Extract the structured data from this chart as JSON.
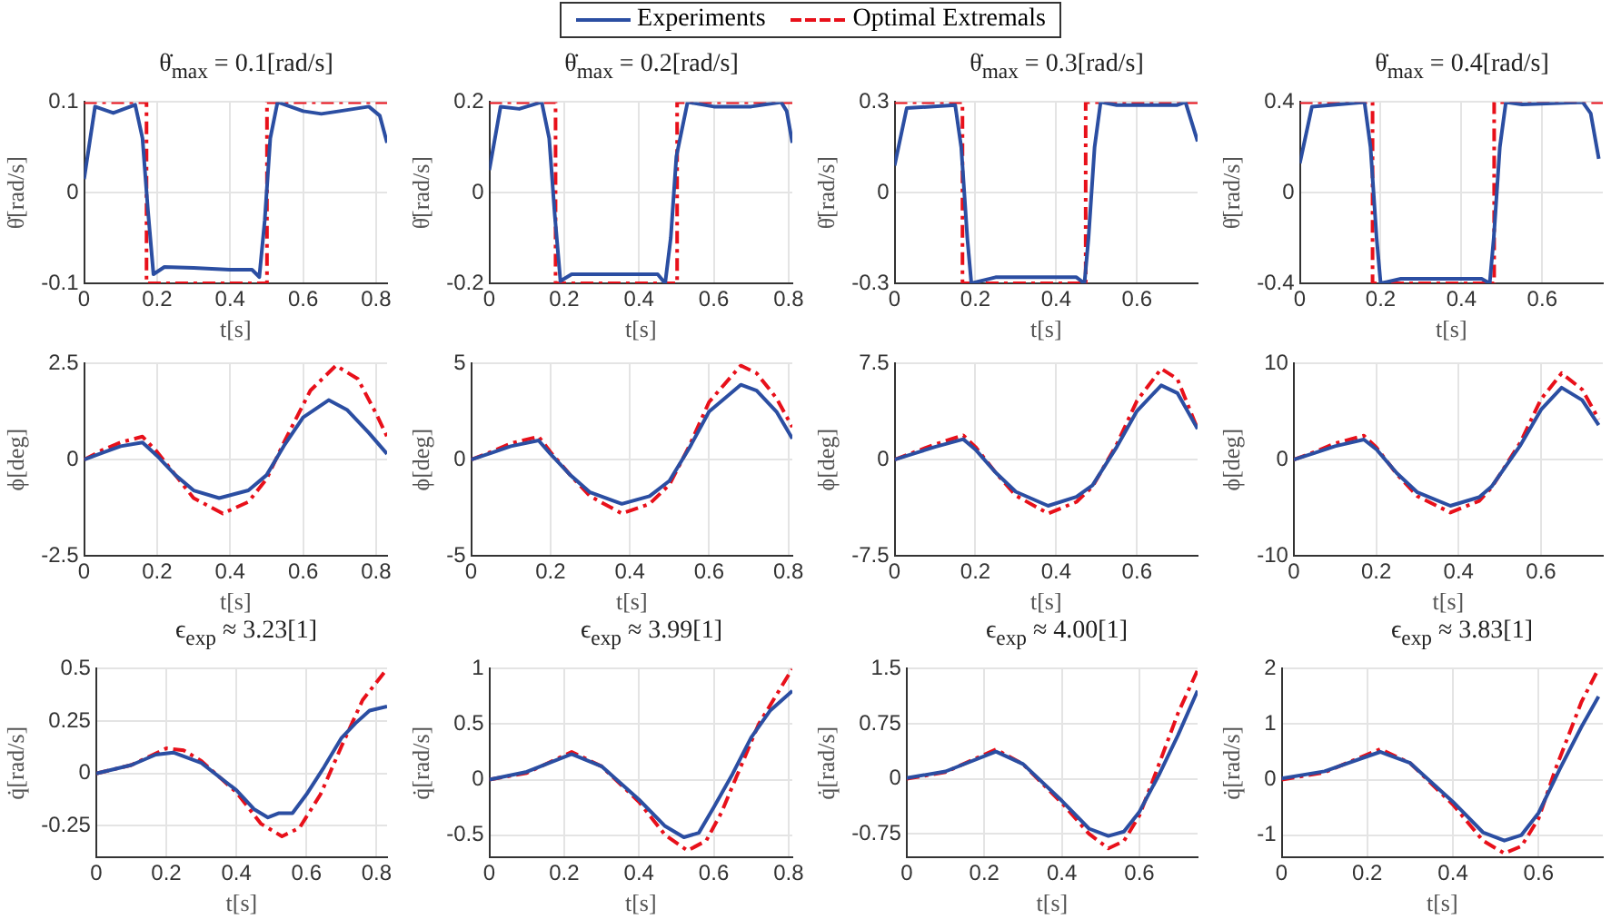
{
  "chart_data": [
    {
      "type": "line",
      "title": "θ̇$_{max}$ = 0.1[rad/s]",
      "xlabel": "t[s]",
      "ylabel": "θ̇[rad/s]",
      "xlim": [
        0,
        0.83
      ],
      "xticks": [
        0,
        0.2,
        0.4,
        0.6,
        0.8
      ],
      "ylim": [
        -0.1,
        0.1
      ],
      "yticks": [
        -0.1,
        0,
        0.1
      ],
      "grid": true,
      "legend": "top",
      "series": [
        {
          "name": "Experiments",
          "color": "#2b4ea2",
          "line_style": "solid",
          "x": [
            0,
            0.03,
            0.08,
            0.14,
            0.16,
            0.175,
            0.19,
            0.22,
            0.3,
            0.4,
            0.46,
            0.48,
            0.495,
            0.51,
            0.53,
            0.6,
            0.65,
            0.7,
            0.78,
            0.81,
            0.83
          ],
          "values": [
            0.015,
            0.095,
            0.088,
            0.097,
            0.06,
            -0.02,
            -0.09,
            -0.082,
            -0.083,
            -0.085,
            -0.085,
            -0.093,
            -0.03,
            0.06,
            0.1,
            0.09,
            0.087,
            0.09,
            0.095,
            0.085,
            0.055
          ]
        },
        {
          "name": "Optimal Extremals",
          "color": "#e8101a",
          "line_style": "dashed",
          "x": [
            0,
            0.171,
            0.171,
            0.501,
            0.501,
            0.83
          ],
          "values": [
            0.1,
            0.1,
            -0.1,
            -0.1,
            0.1,
            0.1
          ]
        }
      ]
    },
    {
      "type": "line",
      "title": "θ̇$_{max}$ = 0.2[rad/s]",
      "xlabel": "t[s]",
      "ylabel": "θ̇[rad/s]",
      "xlim": [
        0,
        0.81
      ],
      "xticks": [
        0,
        0.2,
        0.4,
        0.6,
        0.8
      ],
      "ylim": [
        -0.2,
        0.2
      ],
      "yticks": [
        -0.2,
        0,
        0.2
      ],
      "grid": true,
      "series": [
        {
          "color": "#2b4ea2",
          "line_style": "solid",
          "x": [
            0,
            0.03,
            0.08,
            0.14,
            0.16,
            0.175,
            0.19,
            0.22,
            0.3,
            0.45,
            0.47,
            0.485,
            0.5,
            0.53,
            0.6,
            0.7,
            0.78,
            0.795,
            0.81
          ],
          "values": [
            0.05,
            0.19,
            0.185,
            0.2,
            0.12,
            -0.05,
            -0.195,
            -0.18,
            -0.18,
            -0.18,
            -0.2,
            -0.1,
            0.08,
            0.2,
            0.19,
            0.19,
            0.2,
            0.18,
            0.11
          ]
        },
        {
          "color": "#e8101a",
          "line_style": "dashed",
          "x": [
            0,
            0.177,
            0.177,
            0.502,
            0.502,
            0.81
          ],
          "values": [
            0.2,
            0.2,
            -0.2,
            -0.2,
            0.2,
            0.2
          ]
        }
      ]
    },
    {
      "type": "line",
      "title": "θ̇$_{max}$ = 0.3[rad/s]",
      "xlabel": "t[s]",
      "ylabel": "θ̇[rad/s]",
      "xlim": [
        0,
        0.75
      ],
      "xticks": [
        0,
        0.2,
        0.4,
        0.6
      ],
      "ylim": [
        -0.3,
        0.3
      ],
      "yticks": [
        -0.3,
        0,
        0.3
      ],
      "grid": true,
      "series": [
        {
          "color": "#2b4ea2",
          "line_style": "solid",
          "x": [
            0,
            0.03,
            0.15,
            0.165,
            0.18,
            0.19,
            0.25,
            0.45,
            0.47,
            0.48,
            0.495,
            0.51,
            0.55,
            0.7,
            0.72,
            0.75
          ],
          "values": [
            0.09,
            0.28,
            0.29,
            0.15,
            -0.15,
            -0.3,
            -0.28,
            -0.28,
            -0.3,
            -0.15,
            0.15,
            0.3,
            0.29,
            0.29,
            0.3,
            0.17
          ]
        },
        {
          "color": "#e8101a",
          "line_style": "dashed",
          "x": [
            0,
            0.168,
            0.168,
            0.473,
            0.473,
            0.75
          ],
          "values": [
            0.3,
            0.3,
            -0.3,
            -0.3,
            0.3,
            0.3
          ]
        }
      ]
    },
    {
      "type": "line",
      "title": "θ̇$_{max}$ = 0.4[rad/s]",
      "xlabel": "t[s]",
      "ylabel": "θ̇[rad/s]",
      "xlim": [
        0,
        0.75
      ],
      "xticks": [
        0,
        0.2,
        0.4,
        0.6
      ],
      "ylim": [
        -0.4,
        0.4
      ],
      "yticks": [
        -0.4,
        0,
        0.4
      ],
      "grid": true,
      "series": [
        {
          "color": "#2b4ea2",
          "line_style": "solid",
          "x": [
            0,
            0.03,
            0.16,
            0.175,
            0.19,
            0.2,
            0.25,
            0.45,
            0.47,
            0.48,
            0.495,
            0.51,
            0.55,
            0.7,
            0.72,
            0.74
          ],
          "values": [
            0.13,
            0.38,
            0.4,
            0.2,
            -0.2,
            -0.4,
            -0.38,
            -0.38,
            -0.4,
            -0.2,
            0.2,
            0.4,
            0.39,
            0.4,
            0.35,
            0.15
          ]
        },
        {
          "color": "#e8101a",
          "line_style": "dashed",
          "x": [
            0,
            0.18,
            0.18,
            0.481,
            0.481,
            0.75
          ],
          "values": [
            0.4,
            0.4,
            -0.4,
            -0.4,
            0.4,
            0.4
          ]
        }
      ]
    },
    {
      "type": "line",
      "xlabel": "t[s]",
      "ylabel": "ϕ[deg]",
      "xlim": [
        0,
        0.83
      ],
      "xticks": [
        0,
        0.2,
        0.4,
        0.6,
        0.8
      ],
      "ylim": [
        -2.5,
        2.5
      ],
      "yticks": [
        -2.5,
        0,
        2.5
      ],
      "grid": true,
      "series": [
        {
          "color": "#2b4ea2",
          "line_style": "solid",
          "x": [
            0,
            0.05,
            0.1,
            0.16,
            0.2,
            0.25,
            0.3,
            0.37,
            0.45,
            0.5,
            0.55,
            0.6,
            0.67,
            0.72,
            0.78,
            0.83
          ],
          "values": [
            0,
            0.18,
            0.35,
            0.45,
            0.1,
            -0.4,
            -0.8,
            -1.0,
            -0.8,
            -0.4,
            0.4,
            1.1,
            1.55,
            1.3,
            0.7,
            0.15
          ]
        },
        {
          "color": "#e8101a",
          "line_style": "dashed",
          "x": [
            0,
            0.05,
            0.1,
            0.16,
            0.2,
            0.25,
            0.3,
            0.38,
            0.45,
            0.5,
            0.55,
            0.62,
            0.69,
            0.75,
            0.8,
            0.83
          ],
          "values": [
            0,
            0.25,
            0.45,
            0.6,
            0.2,
            -0.4,
            -1.0,
            -1.4,
            -1.1,
            -0.5,
            0.5,
            1.8,
            2.45,
            2.1,
            1.2,
            0.6
          ]
        }
      ]
    },
    {
      "type": "line",
      "xlabel": "t[s]",
      "ylabel": "ϕ[deg]",
      "xlim": [
        0,
        0.81
      ],
      "xticks": [
        0,
        0.2,
        0.4,
        0.6,
        0.8
      ],
      "ylim": [
        -5,
        5
      ],
      "yticks": [
        -5,
        0,
        5
      ],
      "grid": true,
      "series": [
        {
          "color": "#2b4ea2",
          "line_style": "solid",
          "x": [
            0,
            0.05,
            0.1,
            0.17,
            0.2,
            0.25,
            0.3,
            0.38,
            0.45,
            0.5,
            0.55,
            0.6,
            0.68,
            0.72,
            0.77,
            0.81
          ],
          "values": [
            0,
            0.35,
            0.7,
            1.0,
            0.3,
            -0.8,
            -1.7,
            -2.3,
            -1.9,
            -1.1,
            0.6,
            2.5,
            3.9,
            3.6,
            2.5,
            1.1
          ]
        },
        {
          "color": "#e8101a",
          "line_style": "dashed",
          "x": [
            0,
            0.05,
            0.1,
            0.17,
            0.2,
            0.25,
            0.3,
            0.38,
            0.45,
            0.5,
            0.55,
            0.6,
            0.68,
            0.72,
            0.77,
            0.81
          ],
          "values": [
            0,
            0.4,
            0.85,
            1.2,
            0.4,
            -0.8,
            -1.9,
            -2.8,
            -2.3,
            -1.3,
            0.7,
            3.0,
            4.9,
            4.5,
            3.2,
            1.7
          ]
        }
      ]
    },
    {
      "type": "line",
      "xlabel": "t[s]",
      "ylabel": "ϕ[deg]",
      "xlim": [
        0,
        0.75
      ],
      "xticks": [
        0,
        0.2,
        0.4,
        0.6
      ],
      "ylim": [
        -7.5,
        7.5
      ],
      "yticks": [
        -7.5,
        0,
        7.5
      ],
      "grid": true,
      "series": [
        {
          "color": "#2b4ea2",
          "line_style": "solid",
          "x": [
            0,
            0.05,
            0.1,
            0.17,
            0.2,
            0.25,
            0.3,
            0.38,
            0.45,
            0.49,
            0.55,
            0.6,
            0.66,
            0.7,
            0.75
          ],
          "values": [
            0,
            0.5,
            1.0,
            1.6,
            0.8,
            -1.0,
            -2.5,
            -3.6,
            -2.9,
            -2.0,
            1.0,
            3.8,
            5.8,
            5.2,
            2.4
          ]
        },
        {
          "color": "#e8101a",
          "line_style": "dashed",
          "x": [
            0,
            0.05,
            0.1,
            0.17,
            0.2,
            0.25,
            0.3,
            0.38,
            0.45,
            0.49,
            0.55,
            0.6,
            0.66,
            0.7,
            0.75
          ],
          "values": [
            0,
            0.6,
            1.2,
            1.9,
            1.0,
            -1.0,
            -2.8,
            -4.2,
            -3.3,
            -2.1,
            1.2,
            4.6,
            7.1,
            6.3,
            2.4
          ]
        }
      ]
    },
    {
      "type": "line",
      "xlabel": "t[s]",
      "ylabel": "ϕ[deg]",
      "xlim": [
        0,
        0.75
      ],
      "xticks": [
        0,
        0.2,
        0.4,
        0.6
      ],
      "ylim": [
        -10,
        10
      ],
      "yticks": [
        -10,
        0,
        10
      ],
      "grid": true,
      "series": [
        {
          "color": "#2b4ea2",
          "line_style": "solid",
          "x": [
            0,
            0.05,
            0.1,
            0.17,
            0.2,
            0.25,
            0.3,
            0.38,
            0.45,
            0.48,
            0.55,
            0.6,
            0.65,
            0.7,
            0.74
          ],
          "values": [
            0,
            0.7,
            1.4,
            2.1,
            1.1,
            -1.4,
            -3.4,
            -4.8,
            -3.9,
            -2.8,
            1.5,
            5.2,
            7.5,
            6.2,
            3.6
          ]
        },
        {
          "color": "#e8101a",
          "line_style": "dashed",
          "x": [
            0,
            0.05,
            0.1,
            0.17,
            0.2,
            0.25,
            0.3,
            0.38,
            0.45,
            0.48,
            0.55,
            0.6,
            0.65,
            0.7,
            0.74
          ],
          "values": [
            0,
            0.8,
            1.7,
            2.5,
            1.3,
            -1.5,
            -3.8,
            -5.5,
            -4.3,
            -2.9,
            1.8,
            6.3,
            9.0,
            7.3,
            4.2
          ]
        }
      ]
    },
    {
      "type": "line",
      "title": "ϵ$_{exp}$ ≈ 3.23[1]",
      "xlabel": "t[s]",
      "ylabel": "q̇[rad/s]",
      "xlim": [
        0,
        0.83
      ],
      "xticks": [
        0,
        0.2,
        0.4,
        0.6,
        0.8
      ],
      "ylim": [
        -0.4,
        0.5
      ],
      "yticks": [
        -0.25,
        0,
        0.25,
        0.5
      ],
      "grid": true,
      "series": [
        {
          "color": "#2b4ea2",
          "line_style": "solid",
          "x": [
            0,
            0.1,
            0.17,
            0.22,
            0.3,
            0.4,
            0.45,
            0.49,
            0.52,
            0.56,
            0.6,
            0.65,
            0.7,
            0.74,
            0.78,
            0.83
          ],
          "values": [
            0,
            0.04,
            0.09,
            0.1,
            0.05,
            -0.08,
            -0.17,
            -0.21,
            -0.19,
            -0.19,
            -0.1,
            0.03,
            0.17,
            0.24,
            0.3,
            0.32
          ]
        },
        {
          "color": "#e8101a",
          "line_style": "dashed",
          "x": [
            0,
            0.1,
            0.2,
            0.25,
            0.3,
            0.4,
            0.47,
            0.53,
            0.58,
            0.64,
            0.7,
            0.76,
            0.83
          ],
          "values": [
            0,
            0.04,
            0.12,
            0.11,
            0.06,
            -0.09,
            -0.24,
            -0.3,
            -0.26,
            -0.1,
            0.13,
            0.35,
            0.5
          ]
        }
      ]
    },
    {
      "type": "line",
      "title": "ϵ$_{exp}$ ≈ 3.99[1]",
      "xlabel": "t[s]",
      "ylabel": "q̇[rad/s]",
      "xlim": [
        0,
        0.81
      ],
      "xticks": [
        0,
        0.2,
        0.4,
        0.6,
        0.8
      ],
      "ylim": [
        -0.7,
        1
      ],
      "yticks": [
        -0.5,
        0,
        0.5,
        1
      ],
      "grid": true,
      "series": [
        {
          "color": "#2b4ea2",
          "line_style": "solid",
          "x": [
            0,
            0.1,
            0.22,
            0.3,
            0.4,
            0.47,
            0.52,
            0.56,
            0.6,
            0.65,
            0.7,
            0.75,
            0.81
          ],
          "values": [
            0,
            0.07,
            0.23,
            0.12,
            -0.18,
            -0.42,
            -0.52,
            -0.48,
            -0.25,
            0.05,
            0.38,
            0.62,
            0.8
          ]
        },
        {
          "color": "#e8101a",
          "line_style": "dashed",
          "x": [
            0,
            0.1,
            0.22,
            0.3,
            0.4,
            0.47,
            0.53,
            0.58,
            0.62,
            0.66,
            0.72,
            0.81
          ],
          "values": [
            0,
            0.06,
            0.25,
            0.12,
            -0.2,
            -0.5,
            -0.64,
            -0.55,
            -0.3,
            0.02,
            0.5,
            1.0
          ]
        }
      ]
    },
    {
      "type": "line",
      "title": "ϵ$_{exp}$ ≈ 4.00[1]",
      "xlabel": "t[s]",
      "ylabel": "q̇[rad/s]",
      "xlim": [
        0,
        0.75
      ],
      "xticks": [
        0,
        0.2,
        0.4,
        0.6
      ],
      "ylim": [
        -1.07,
        1.5
      ],
      "yticks": [
        -0.75,
        0,
        0.75,
        1.5
      ],
      "grid": true,
      "series": [
        {
          "color": "#2b4ea2",
          "line_style": "solid",
          "x": [
            0,
            0.1,
            0.23,
            0.3,
            0.4,
            0.47,
            0.52,
            0.56,
            0.6,
            0.65,
            0.7,
            0.75
          ],
          "values": [
            0.01,
            0.1,
            0.37,
            0.2,
            -0.3,
            -0.68,
            -0.78,
            -0.72,
            -0.45,
            0.05,
            0.6,
            1.2
          ]
        },
        {
          "color": "#e8101a",
          "line_style": "dashed",
          "x": [
            0,
            0.1,
            0.23,
            0.3,
            0.4,
            0.47,
            0.52,
            0.56,
            0.6,
            0.64,
            0.7,
            0.75
          ],
          "values": [
            0,
            0.09,
            0.4,
            0.2,
            -0.33,
            -0.75,
            -0.95,
            -0.85,
            -0.5,
            0.05,
            0.9,
            1.48
          ]
        }
      ]
    },
    {
      "type": "line",
      "title": "ϵ$_{exp}$ ≈ 3.83[1]",
      "xlabel": "t[s]",
      "ylabel": "q̇[rad/s]",
      "xlim": [
        0,
        0.75
      ],
      "xticks": [
        0,
        0.2,
        0.4,
        0.6
      ],
      "ylim": [
        -1.4,
        2
      ],
      "yticks": [
        -1,
        0,
        1,
        2
      ],
      "grid": true,
      "series": [
        {
          "color": "#2b4ea2",
          "line_style": "solid",
          "x": [
            0,
            0.1,
            0.23,
            0.3,
            0.4,
            0.47,
            0.52,
            0.56,
            0.6,
            0.65,
            0.7,
            0.74
          ],
          "values": [
            0.02,
            0.15,
            0.5,
            0.3,
            -0.4,
            -0.95,
            -1.1,
            -1.0,
            -0.6,
            0.2,
            0.95,
            1.5
          ]
        },
        {
          "color": "#e8101a",
          "line_style": "dashed",
          "x": [
            0,
            0.1,
            0.23,
            0.3,
            0.4,
            0.47,
            0.52,
            0.56,
            0.6,
            0.64,
            0.7,
            0.74
          ],
          "values": [
            0,
            0.13,
            0.55,
            0.3,
            -0.45,
            -1.1,
            -1.33,
            -1.2,
            -0.7,
            0.2,
            1.4,
            2.0
          ]
        }
      ]
    }
  ]
}
